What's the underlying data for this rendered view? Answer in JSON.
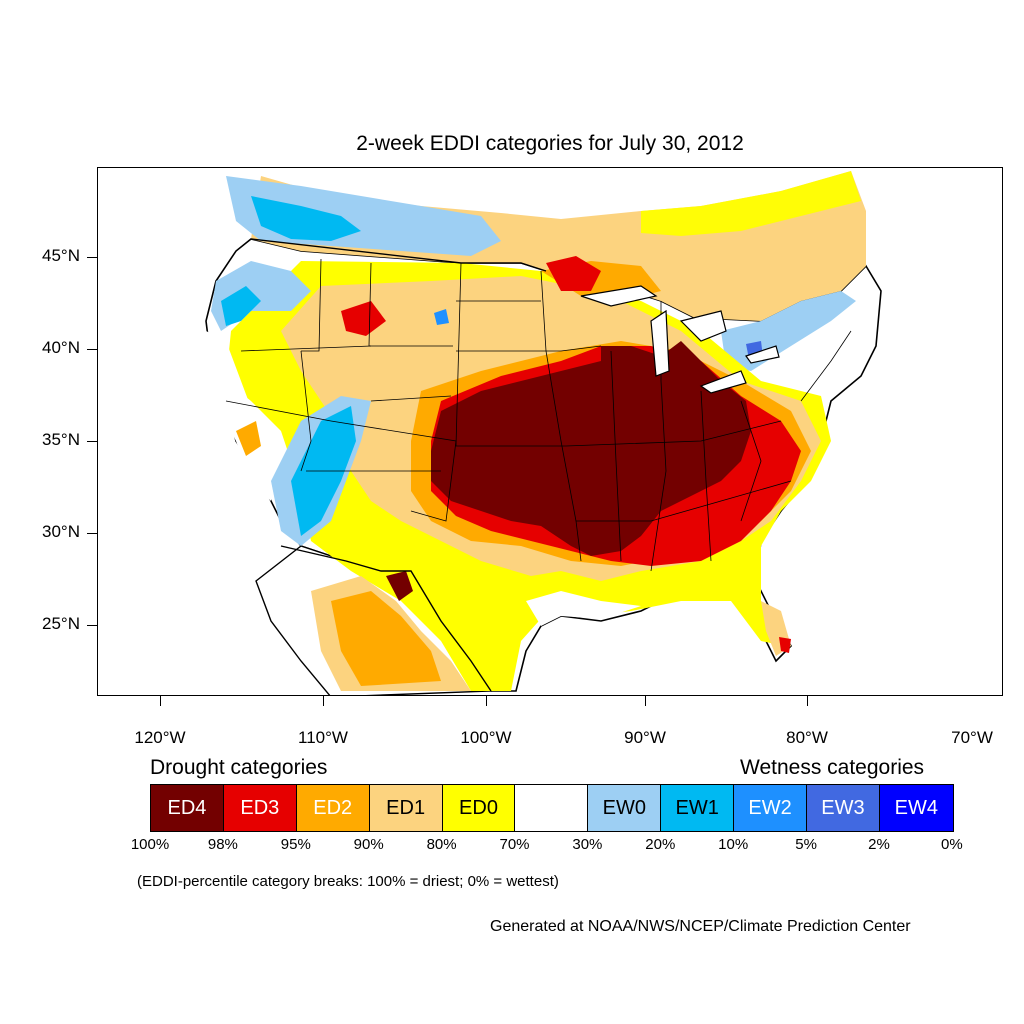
{
  "title": "2-week EDDI categories for July 30, 2012",
  "y_axis": {
    "ticks": [
      "45°N",
      "40°N",
      "35°N",
      "30°N",
      "25°N"
    ]
  },
  "x_axis": {
    "ticks": [
      "120°W",
      "110°W",
      "100°W",
      "90°W",
      "80°W",
      "70°W"
    ]
  },
  "legend": {
    "drought_heading": "Drought categories",
    "wetness_heading": "Wetness categories",
    "categories": [
      {
        "label": "ED4",
        "color": "#730000",
        "text_color": "#ffffff"
      },
      {
        "label": "ED3",
        "color": "#e60000",
        "text_color": "#ffffff"
      },
      {
        "label": "ED2",
        "color": "#ffaa00",
        "text_color": "#ffffff"
      },
      {
        "label": "ED1",
        "color": "#fcd37f",
        "text_color": "#000000"
      },
      {
        "label": "ED0",
        "color": "#ffff00",
        "text_color": "#000000"
      },
      {
        "label": "",
        "color": "#ffffff",
        "text_color": "#000000"
      },
      {
        "label": "EW0",
        "color": "#9dcff3",
        "text_color": "#000000"
      },
      {
        "label": "EW1",
        "color": "#00b9f2",
        "text_color": "#000000"
      },
      {
        "label": "EW2",
        "color": "#1e90ff",
        "text_color": "#ffffff"
      },
      {
        "label": "EW3",
        "color": "#4169e1",
        "text_color": "#ffffff"
      },
      {
        "label": "EW4",
        "color": "#0000ff",
        "text_color": "#ffffff"
      }
    ],
    "percent_breaks": [
      "100%",
      "98%",
      "95%",
      "90%",
      "80%",
      "70%",
      "30%",
      "20%",
      "10%",
      "5%",
      "2%",
      "0%"
    ]
  },
  "note": "(EDDI-percentile category breaks: 100% = driest; 0% = wettest)",
  "credit": "Generated at NOAA/NWS/NCEP/Climate Prediction Center"
}
